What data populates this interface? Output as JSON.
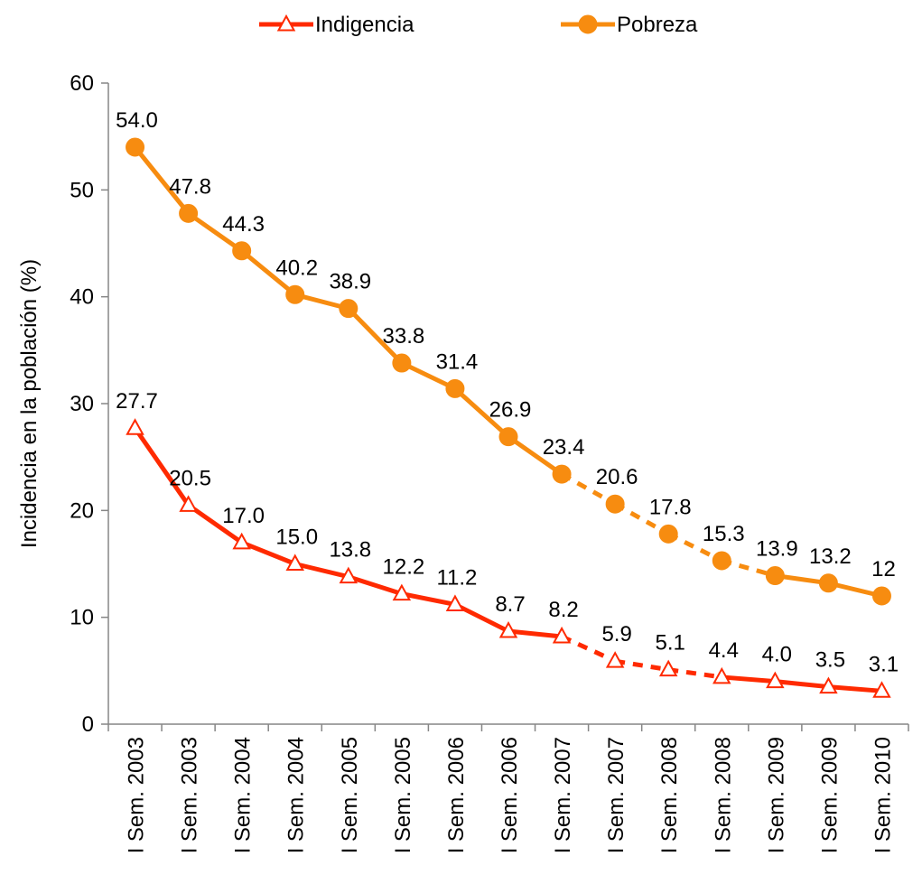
{
  "chart_data": {
    "type": "line",
    "title": "",
    "xlabel": "",
    "ylabel": "Incidencia en la población (%)",
    "ylim": [
      0,
      60
    ],
    "yticks": [
      0,
      10,
      20,
      30,
      40,
      50,
      60
    ],
    "grid": false,
    "legend_position": "top",
    "categories": [
      "I Sem. 2003",
      "I Sem. 2003",
      "I Sem. 2004",
      "I Sem. 2004",
      "I Sem. 2005",
      "I Sem. 2005",
      "I Sem. 2006",
      "I Sem. 2006",
      "I Sem. 2007",
      "I Sem. 2007",
      "I Sem. 2008",
      "I Sem. 2008",
      "I Sem. 2009",
      "I Sem. 2009",
      "I Sem. 2010"
    ],
    "series": [
      {
        "name": "Indigencia",
        "color": "#FF2A00",
        "marker": "triangle-open",
        "dashed_segments": [
          [
            8,
            11
          ]
        ],
        "values": [
          27.7,
          20.5,
          17.0,
          15.0,
          13.8,
          12.2,
          11.2,
          8.7,
          8.2,
          5.9,
          5.1,
          4.4,
          4.0,
          3.5,
          3.1
        ],
        "labels": [
          "27.7",
          "20.5",
          "17.0",
          "15.0",
          "13.8",
          "12.2",
          "11.2",
          "8.7",
          "8.2",
          "5.9",
          "5.1",
          "4.4",
          "4.0",
          "3.5",
          "3.1"
        ]
      },
      {
        "name": "Pobreza",
        "color": "#F78C10",
        "marker": "circle-filled",
        "dashed_segments": [
          [
            8,
            12
          ]
        ],
        "values": [
          54.0,
          47.8,
          44.3,
          40.2,
          38.9,
          33.8,
          31.4,
          26.9,
          23.4,
          20.6,
          17.8,
          15.3,
          13.9,
          13.2,
          12
        ],
        "labels": [
          "54.0",
          "47.8",
          "44.3",
          "40.2",
          "38.9",
          "33.8",
          "31.4",
          "26.9",
          "23.4",
          "20.6",
          "17.8",
          "15.3",
          "13.9",
          "13.2",
          "12"
        ]
      }
    ]
  }
}
